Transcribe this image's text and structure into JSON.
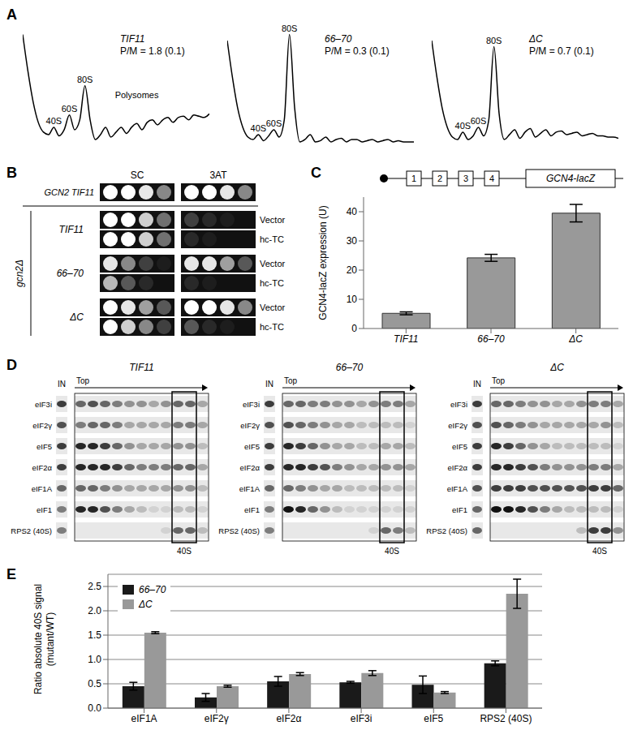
{
  "chart_data": [
    {
      "type": "line",
      "panel": "A",
      "xlim": [
        0,
        36
      ],
      "ylim": [
        0,
        105
      ],
      "tick_labels": false,
      "color": "#000000",
      "profiles": [
        {
          "title": "TIF11",
          "annotation": "P/M = 1.8 (0.1)",
          "x": [
            0,
            1,
            2,
            3,
            4,
            5,
            6,
            7,
            8,
            9,
            10,
            11,
            12,
            13,
            14,
            15,
            16,
            17,
            18,
            19,
            20,
            21,
            22,
            23,
            24,
            25,
            26,
            27,
            28,
            29,
            30,
            31,
            32,
            33,
            34,
            35,
            36
          ],
          "y": [
            100,
            70,
            45,
            28,
            20,
            18,
            24,
            17,
            22,
            34,
            22,
            30,
            58,
            30,
            14,
            18,
            24,
            16,
            20,
            24,
            19,
            24,
            27,
            22,
            28,
            30,
            26,
            30,
            32,
            28,
            32,
            33,
            30,
            34,
            33,
            32,
            35
          ],
          "peaks": [
            {
              "label": "40S",
              "x": 6,
              "y": 24
            },
            {
              "label": "60S",
              "x": 9,
              "y": 34
            },
            {
              "label": "80S",
              "x": 12,
              "y": 58
            },
            {
              "label": "Polysomes",
              "x": 22,
              "y": 45
            }
          ]
        },
        {
          "title": "66–70",
          "annotation": "P/M = 0.3 (0.1)",
          "x": [
            0,
            1,
            2,
            3,
            4,
            5,
            6,
            7,
            8,
            9,
            10,
            11,
            12,
            13,
            14,
            15,
            16,
            17,
            18,
            19,
            20,
            21,
            22,
            23,
            24,
            25,
            26,
            27,
            28,
            29,
            30,
            31,
            32,
            33,
            34,
            35,
            36
          ],
          "y": [
            95,
            65,
            40,
            24,
            16,
            14,
            18,
            13,
            17,
            22,
            16,
            30,
            100,
            40,
            12,
            14,
            18,
            12,
            13,
            16,
            12,
            14,
            15,
            12,
            14,
            14,
            12,
            13,
            14,
            12,
            13,
            14,
            12,
            13,
            12,
            12,
            12
          ],
          "peaks": [
            {
              "label": "40S",
              "x": 6,
              "y": 18
            },
            {
              "label": "60S",
              "x": 9,
              "y": 22
            },
            {
              "label": "80S",
              "x": 12,
              "y": 100
            }
          ]
        },
        {
          "title": "ΔC",
          "annotation": "P/M = 0.7 (0.1)",
          "x": [
            0,
            1,
            2,
            3,
            4,
            5,
            6,
            7,
            8,
            9,
            10,
            11,
            12,
            13,
            14,
            15,
            16,
            17,
            18,
            19,
            20,
            21,
            22,
            23,
            24,
            25,
            26,
            27,
            28,
            29,
            30,
            31,
            32,
            33,
            34,
            35,
            36
          ],
          "y": [
            95,
            65,
            40,
            24,
            16,
            14,
            20,
            14,
            17,
            24,
            17,
            30,
            90,
            35,
            14,
            18,
            22,
            15,
            20,
            23,
            16,
            19,
            22,
            17,
            20,
            21,
            18,
            19,
            20,
            17,
            18,
            19,
            17,
            17,
            16,
            16,
            15
          ],
          "peaks": [
            {
              "label": "40S",
              "x": 6,
              "y": 20
            },
            {
              "label": "60S",
              "x": 9,
              "y": 24
            },
            {
              "label": "80S",
              "x": 12,
              "y": 90
            }
          ]
        }
      ]
    },
    {
      "type": "spot_assay",
      "panel": "B",
      "columns": [
        "SC",
        "3AT"
      ],
      "wild_type": {
        "label": "GCN2 TIF11",
        "spots": [
          [
            1,
            1,
            0.9,
            0.5
          ],
          [
            1,
            1,
            0.9,
            0.5
          ]
        ]
      },
      "mutant_label": "gcn2Δ",
      "groups": [
        {
          "label": "TIF11",
          "rows": [
            {
              "label": "Vector",
              "spots": [
                [
                  1,
                  1,
                  0.8,
                  0.4
                ],
                [
                  0.2,
                  0.1,
                  0.05,
                  0
                ]
              ]
            },
            {
              "label": "hc-TC",
              "spots": [
                [
                  1,
                  1,
                  0.8,
                  0.4
                ],
                [
                  0.1,
                  0.05,
                  0,
                  0
                ]
              ]
            }
          ]
        },
        {
          "label": "66–70",
          "rows": [
            {
              "label": "Vector",
              "spots": [
                [
                  0.9,
                  0.5,
                  0.2,
                  0.05
                ],
                [
                  0.9,
                  0.9,
                  0.6,
                  0.3
                ]
              ]
            },
            {
              "label": "hc-TC",
              "spots": [
                [
                  0.7,
                  0.3,
                  0.1,
                  0
                ],
                [
                  0.1,
                  0.05,
                  0,
                  0
                ]
              ]
            }
          ]
        },
        {
          "label": "ΔC",
          "rows": [
            {
              "label": "Vector",
              "spots": [
                [
                  1,
                  0.9,
                  0.6,
                  0.3
                ],
                [
                  1,
                  1,
                  0.9,
                  0.5
                ]
              ]
            },
            {
              "label": "hc-TC",
              "spots": [
                [
                  1,
                  0.8,
                  0.5,
                  0.2
                ],
                [
                  0.3,
                  0.1,
                  0.05,
                  0
                ]
              ]
            }
          ]
        }
      ]
    },
    {
      "type": "bar",
      "panel": "C",
      "construct": {
        "uorfs": [
          "1",
          "2",
          "3",
          "4"
        ],
        "gene": "GCN4-lacZ"
      },
      "categories": [
        "TIF11",
        "66–70",
        "ΔC"
      ],
      "values": [
        5.2,
        24.2,
        39.5
      ],
      "errors": [
        0.5,
        1.2,
        3
      ],
      "color": "#999999",
      "ylim": [
        0,
        45
      ],
      "yticks": [
        0,
        10,
        20,
        30,
        40
      ],
      "y_label": "GCN4-lacZ expression (U)"
    },
    {
      "type": "blot",
      "panel": "D",
      "input_label": "IN",
      "gradient_label": "Top",
      "fraction_label": "40S",
      "blots": [
        {
          "title": "TIF11",
          "box": [
            8,
            9
          ],
          "rows": [
            {
              "label": "eIF3i",
              "in": 0.8,
              "fractions": [
                0.6,
                0.7,
                0.6,
                0.5,
                0.4,
                0.4,
                0.3,
                0.4,
                0.6,
                0.6,
                0.3
              ]
            },
            {
              "label": "eIF2γ",
              "in": 0.7,
              "fractions": [
                0.5,
                0.6,
                0.6,
                0.5,
                0.3,
                0.3,
                0.3,
                0.3,
                0.5,
                0.5,
                0.3
              ]
            },
            {
              "label": "eIF5",
              "in": 0.8,
              "fractions": [
                0.9,
                0.9,
                0.8,
                0.6,
                0.4,
                0.3,
                0.3,
                0.3,
                0.4,
                0.4,
                0.2
              ]
            },
            {
              "label": "eIF2α",
              "in": 0.8,
              "fractions": [
                0.9,
                0.9,
                0.9,
                0.8,
                0.6,
                0.5,
                0.5,
                0.5,
                0.6,
                0.6,
                0.3
              ]
            },
            {
              "label": "eIF1A",
              "in": 0.6,
              "fractions": [
                0.6,
                0.6,
                0.5,
                0.4,
                0.3,
                0.3,
                0.3,
                0.3,
                0.4,
                0.4,
                0.2
              ]
            },
            {
              "label": "eIF1",
              "in": 0.5,
              "fractions": [
                0.9,
                0.9,
                0.7,
                0.5,
                0.3,
                0.2,
                0.1,
                0.1,
                0.2,
                0.2,
                0.1
              ]
            },
            {
              "label": "RPS2 (40S)",
              "in": 0.5,
              "fractions": [
                0,
                0,
                0,
                0,
                0,
                0,
                0,
                0.1,
                0.6,
                0.6,
                0.2
              ]
            }
          ]
        },
        {
          "title": "66–70",
          "box": [
            8,
            9
          ],
          "rows": [
            {
              "label": "eIF3i",
              "in": 0.8,
              "fractions": [
                0.6,
                0.6,
                0.5,
                0.5,
                0.4,
                0.4,
                0.3,
                0.4,
                0.5,
                0.5,
                0.3
              ]
            },
            {
              "label": "eIF2γ",
              "in": 0.7,
              "fractions": [
                0.7,
                0.6,
                0.5,
                0.4,
                0.3,
                0.3,
                0.2,
                0.2,
                0.2,
                0.2,
                0.1
              ]
            },
            {
              "label": "eIF5",
              "in": 0.8,
              "fractions": [
                0.9,
                0.8,
                0.6,
                0.4,
                0.3,
                0.3,
                0.2,
                0.2,
                0.3,
                0.3,
                0.2
              ]
            },
            {
              "label": "eIF2α",
              "in": 0.8,
              "fractions": [
                0.9,
                0.9,
                0.8,
                0.7,
                0.5,
                0.4,
                0.3,
                0.3,
                0.4,
                0.4,
                0.3
              ]
            },
            {
              "label": "eIF1A",
              "in": 0.6,
              "fractions": [
                0.6,
                0.5,
                0.4,
                0.3,
                0.3,
                0.2,
                0.2,
                0.2,
                0.2,
                0.2,
                0.1
              ]
            },
            {
              "label": "eIF1",
              "in": 0.5,
              "fractions": [
                1,
                0.9,
                0.6,
                0.4,
                0.2,
                0.1,
                0.1,
                0.1,
                0.1,
                0.1,
                0.1
              ]
            },
            {
              "label": "RPS2 (40S)",
              "in": 0.5,
              "fractions": [
                0,
                0,
                0,
                0,
                0,
                0,
                0,
                0.1,
                0.6,
                0.5,
                0.2
              ]
            }
          ]
        },
        {
          "title": "ΔC",
          "box": [
            8,
            9
          ],
          "rows": [
            {
              "label": "eIF3i",
              "in": 0.8,
              "fractions": [
                0.6,
                0.6,
                0.5,
                0.4,
                0.4,
                0.3,
                0.3,
                0.4,
                0.5,
                0.5,
                0.3
              ]
            },
            {
              "label": "eIF2γ",
              "in": 0.7,
              "fractions": [
                0.7,
                0.6,
                0.5,
                0.4,
                0.3,
                0.3,
                0.3,
                0.3,
                0.3,
                0.4,
                0.2
              ]
            },
            {
              "label": "eIF5",
              "in": 0.8,
              "fractions": [
                0.9,
                0.8,
                0.6,
                0.4,
                0.3,
                0.2,
                0.2,
                0.2,
                0.2,
                0.2,
                0.1
              ]
            },
            {
              "label": "eIF2α",
              "in": 0.8,
              "fractions": [
                0.9,
                0.9,
                0.8,
                0.7,
                0.5,
                0.4,
                0.4,
                0.4,
                0.5,
                0.5,
                0.3
              ]
            },
            {
              "label": "eIF1A",
              "in": 0.7,
              "fractions": [
                0.8,
                0.8,
                0.8,
                0.7,
                0.7,
                0.7,
                0.7,
                0.7,
                0.8,
                0.8,
                0.6
              ]
            },
            {
              "label": "eIF1",
              "in": 0.6,
              "fractions": [
                1,
                1,
                0.9,
                0.7,
                0.5,
                0.3,
                0.2,
                0.2,
                0.2,
                0.2,
                0.1
              ]
            },
            {
              "label": "RPS2 (40S)",
              "in": 0.6,
              "fractions": [
                0,
                0,
                0,
                0,
                0,
                0,
                0,
                0.2,
                0.8,
                0.8,
                0.4
              ]
            }
          ]
        }
      ]
    },
    {
      "type": "bar",
      "panel": "E",
      "categories": [
        "eIF1A",
        "eIF2γ",
        "eIF2α",
        "eIF3i",
        "eIF5",
        "RPS2 (40S)"
      ],
      "series": [
        {
          "name": "66–70",
          "color": "#1a1a1a",
          "values": [
            0.45,
            0.22,
            0.55,
            0.53,
            0.48,
            0.92
          ],
          "errors": [
            0.08,
            0.08,
            0.1,
            0.02,
            0.18,
            0.05
          ]
        },
        {
          "name": "ΔC",
          "color": "#999999",
          "values": [
            1.55,
            0.45,
            0.7,
            0.72,
            0.32,
            2.35
          ],
          "errors": [
            0.02,
            0.02,
            0.03,
            0.05,
            0.02,
            0.3
          ]
        }
      ],
      "ylim": [
        0,
        2.75
      ],
      "yticks": [
        {
          "value": 0,
          "label": "0.0"
        },
        {
          "value": 0.5,
          "label": "0.5"
        },
        {
          "value": 1,
          "label": "1.0"
        },
        {
          "value": 1.5,
          "label": "1.5"
        },
        {
          "value": 2,
          "label": "2.0"
        },
        {
          "value": 2.5,
          "label": "2.5"
        }
      ],
      "grid": true,
      "legend": "upper left",
      "y_label": [
        "Ratio absolute 40S signal",
        "(mutant/WT)"
      ]
    }
  ]
}
